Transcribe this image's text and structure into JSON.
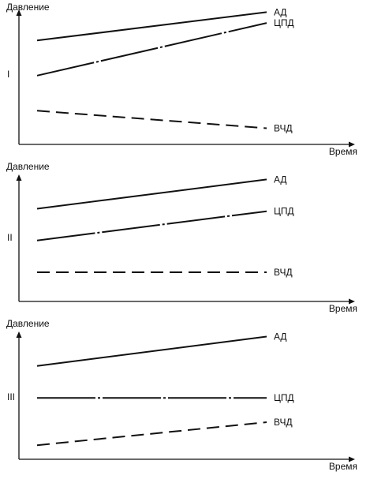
{
  "chart_data": [
    {
      "type": "line",
      "panel_label": "I",
      "ylabel": "Давление",
      "xlabel": "Время",
      "x": [
        0,
        1
      ],
      "ylim": [
        0,
        1
      ],
      "series": [
        {
          "name": "АД",
          "values": [
            0.77,
            0.98
          ],
          "style": "solid"
        },
        {
          "name": "ЦПД",
          "values": [
            0.51,
            0.9
          ],
          "style": "dash-dot"
        },
        {
          "name": "ВЧД",
          "values": [
            0.25,
            0.12
          ],
          "style": "dashed"
        }
      ]
    },
    {
      "type": "line",
      "panel_label": "II",
      "ylabel": "Давление",
      "xlabel": "Время",
      "x": [
        0,
        1
      ],
      "ylim": [
        0,
        1
      ],
      "series": [
        {
          "name": "АД",
          "values": [
            0.73,
            0.96
          ],
          "style": "solid"
        },
        {
          "name": "ЦПД",
          "values": [
            0.48,
            0.71
          ],
          "style": "dash-dot"
        },
        {
          "name": "ВЧД",
          "values": [
            0.23,
            0.23
          ],
          "style": "dashed"
        }
      ]
    },
    {
      "type": "line",
      "panel_label": "III",
      "ylabel": "Давление",
      "xlabel": "Время",
      "x": [
        0,
        1
      ],
      "ylim": [
        0,
        1
      ],
      "series": [
        {
          "name": "АД",
          "values": [
            0.73,
            0.96
          ],
          "style": "solid"
        },
        {
          "name": "ЦПД",
          "values": [
            0.48,
            0.48
          ],
          "style": "dash-dot"
        },
        {
          "name": "ВЧД",
          "values": [
            0.11,
            0.29
          ],
          "style": "dashed"
        }
      ]
    }
  ]
}
